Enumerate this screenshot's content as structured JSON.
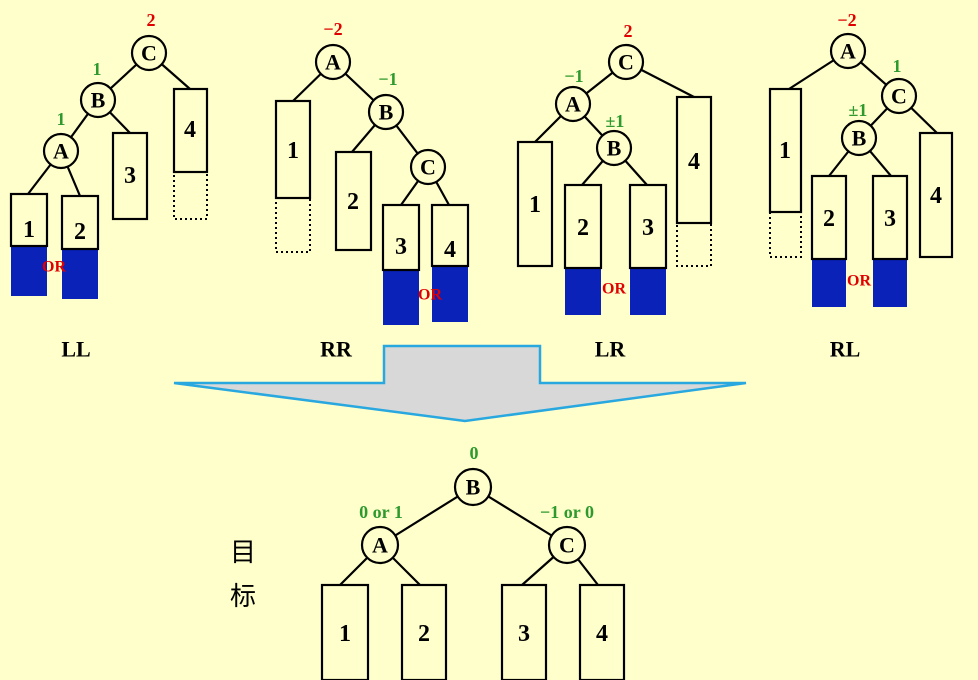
{
  "cases": {
    "ll": {
      "label": "LL",
      "nodes": {
        "c": "C",
        "b": "B",
        "a": "A"
      },
      "balances": {
        "c": "2",
        "b": "1",
        "a": "1"
      },
      "subtrees": {
        "s1": "1",
        "s2": "2",
        "s3": "3",
        "s4": "4"
      },
      "or": "OR"
    },
    "rr": {
      "label": "RR",
      "nodes": {
        "a": "A",
        "b": "B",
        "c": "C"
      },
      "balances": {
        "a": "−2",
        "b": "−1"
      },
      "subtrees": {
        "s1": "1",
        "s2": "2",
        "s3": "3",
        "s4": "4"
      },
      "or": "OR"
    },
    "lr": {
      "label": "LR",
      "nodes": {
        "c": "C",
        "a": "A",
        "b": "B"
      },
      "balances": {
        "c": "2",
        "a": "−1",
        "b": "±1"
      },
      "subtrees": {
        "s1": "1",
        "s2": "2",
        "s3": "3",
        "s4": "4"
      },
      "or": "OR"
    },
    "rl": {
      "label": "RL",
      "nodes": {
        "a": "A",
        "c": "C",
        "b": "B"
      },
      "balances": {
        "a": "−2",
        "c": "1",
        "b": "±1"
      },
      "subtrees": {
        "s1": "1",
        "s2": "2",
        "s3": "3",
        "s4": "4"
      },
      "or": "OR"
    }
  },
  "target": {
    "label_line1": "目",
    "label_line2": "标",
    "nodes": {
      "b": "B",
      "a": "A",
      "c": "C"
    },
    "balances": {
      "b": "0",
      "a": "0 or 1",
      "c": "−1 or 0"
    },
    "subtrees": {
      "s1": "1",
      "s2": "2",
      "s3": "3",
      "s4": "4"
    }
  },
  "colors": {
    "background": "#FFFFCC",
    "height_increase_fill": "#0A22B8",
    "arrow_fill": "#D8D8D8",
    "arrow_stroke": "#29A8E0",
    "balance_red": "#E00000",
    "balance_green": "#2E9A2E"
  }
}
